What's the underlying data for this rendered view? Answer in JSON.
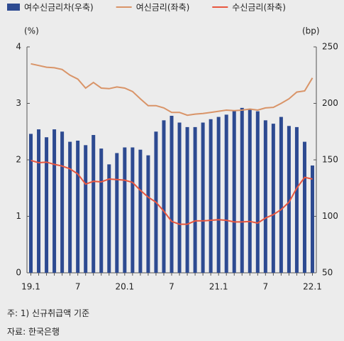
{
  "chart_data": {
    "type": "bar_line",
    "categories": [
      "19.1",
      null,
      null,
      null,
      null,
      null,
      "7",
      null,
      null,
      null,
      null,
      null,
      "20.1",
      null,
      null,
      null,
      null,
      null,
      "7",
      null,
      null,
      null,
      null,
      null,
      "21.1",
      null,
      null,
      null,
      null,
      null,
      "7",
      null,
      null,
      null,
      null,
      null,
      "22.1"
    ],
    "ylabel": "(%)",
    "y2label": "(bp)",
    "ylim": [
      0,
      4
    ],
    "yticks": [
      0,
      1,
      2,
      3,
      4
    ],
    "y2lim": [
      50,
      250
    ],
    "y2ticks": [
      50,
      100,
      150,
      200,
      250
    ],
    "legend": "top",
    "series": [
      {
        "name": "여수신금리차(우축)",
        "color": "#2d4a91",
        "kind": "bar",
        "axis": "y2",
        "values": [
          173,
          177,
          170,
          177,
          175,
          166,
          167,
          163,
          172,
          160,
          146,
          156,
          161,
          161,
          159,
          154,
          175,
          185,
          189,
          183,
          179,
          179,
          183,
          186,
          188,
          190,
          194,
          196,
          195,
          193,
          185,
          182,
          188,
          180,
          179,
          166,
          145
        ]
      },
      {
        "name": "여신금리(좌축)",
        "color": "#d99468",
        "kind": "line",
        "axis": "y",
        "values": [
          3.7,
          3.67,
          3.64,
          3.63,
          3.6,
          3.5,
          3.43,
          3.27,
          3.37,
          3.27,
          3.26,
          3.29,
          3.27,
          3.21,
          3.08,
          2.96,
          2.96,
          2.92,
          2.84,
          2.84,
          2.79,
          2.81,
          2.82,
          2.84,
          2.86,
          2.88,
          2.87,
          2.88,
          2.9,
          2.88,
          2.92,
          2.93,
          3.0,
          3.08,
          3.2,
          3.22,
          3.45
        ]
      },
      {
        "name": "수신금리(좌축)",
        "color": "#e8573f",
        "kind": "line",
        "axis": "y",
        "values": [
          1.99,
          1.95,
          1.96,
          1.92,
          1.89,
          1.84,
          1.75,
          1.57,
          1.62,
          1.61,
          1.66,
          1.65,
          1.64,
          1.6,
          1.46,
          1.34,
          1.25,
          1.09,
          0.91,
          0.86,
          0.86,
          0.92,
          0.92,
          0.93,
          0.94,
          0.93,
          0.9,
          0.9,
          0.91,
          0.88,
          0.97,
          1.03,
          1.12,
          1.25,
          1.5,
          1.69,
          1.66
        ]
      }
    ]
  },
  "notes": [
    "주: 1) 신규취급액 기준",
    "자료: 한국은행"
  ]
}
